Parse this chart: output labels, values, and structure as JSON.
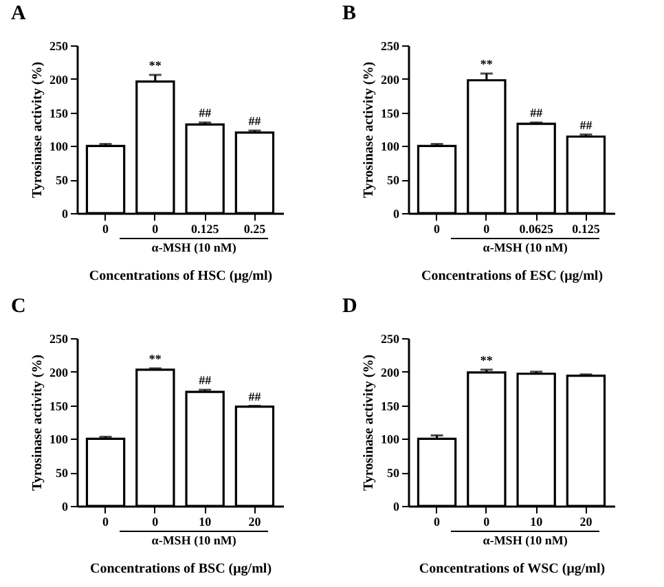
{
  "chart_data": [
    {
      "type": "bar",
      "title": "A",
      "xlabel": "Concentrations of HSC (μg/ml)",
      "ylabel": "Tyrosinase activity (%)",
      "categories": [
        "0",
        "0",
        "0.125",
        "0.25"
      ],
      "values": [
        100,
        196,
        132,
        120
      ],
      "errors": [
        [
          100,
          103
        ],
        [
          196,
          206
        ],
        [
          132,
          135
        ],
        [
          120,
          123
        ]
      ],
      "value_labels": [
        null,
        "**",
        "##",
        "##"
      ],
      "color": "#ffffff",
      "ylim": [
        0,
        250
      ],
      "yticks": [
        0,
        50,
        100,
        150,
        200,
        250
      ],
      "grid": false,
      "annotations": [
        "α-MSH (10 nM)"
      ]
    },
    {
      "type": "bar",
      "title": "B",
      "xlabel": "Concentrations of ESC (μg/ml)",
      "ylabel": "Tyrosinase activity (%)",
      "categories": [
        "0",
        "0",
        "0.0625",
        "0.125"
      ],
      "values": [
        100,
        198,
        133,
        114
      ],
      "errors": [
        [
          100,
          103
        ],
        [
          198,
          208
        ],
        [
          133,
          135
        ],
        [
          114,
          117
        ]
      ],
      "value_labels": [
        null,
        "**",
        "##",
        "##"
      ],
      "color": "#ffffff",
      "ylim": [
        0,
        250
      ],
      "yticks": [
        0,
        50,
        100,
        150,
        200,
        250
      ],
      "grid": false,
      "annotations": [
        "α-MSH (10 nM)"
      ]
    },
    {
      "type": "bar",
      "title": "C",
      "xlabel": "Concentrations of BSC (μg/ml)",
      "ylabel": "Tyrosinase activity (%)",
      "categories": [
        "0",
        "0",
        "10",
        "20"
      ],
      "values": [
        100,
        203,
        170,
        148
      ],
      "errors": [
        [
          100,
          103
        ],
        [
          203,
          205
        ],
        [
          170,
          173
        ],
        [
          148,
          149
        ]
      ],
      "value_labels": [
        null,
        "**",
        "##",
        "##"
      ],
      "color": "#ffffff",
      "ylim": [
        0,
        250
      ],
      "yticks": [
        0,
        50,
        100,
        150,
        200,
        250
      ],
      "grid": false,
      "annotations": [
        "α-MSH (10 nM)"
      ]
    },
    {
      "type": "bar",
      "title": "D",
      "xlabel": "Concentrations of WSC (μg/ml)",
      "ylabel": "Tyrosinase activity (%)",
      "categories": [
        "0",
        "0",
        "10",
        "20"
      ],
      "values": [
        100,
        199,
        197,
        194
      ],
      "errors": [
        [
          100,
          105
        ],
        [
          199,
          203
        ],
        [
          197,
          200
        ],
        [
          194,
          196
        ]
      ],
      "value_labels": [
        null,
        "**",
        null,
        null
      ],
      "color": "#ffffff",
      "ylim": [
        0,
        250
      ],
      "yticks": [
        0,
        50,
        100,
        150,
        200,
        250
      ],
      "grid": false,
      "annotations": [
        "α-MSH (10 nM)"
      ]
    }
  ]
}
